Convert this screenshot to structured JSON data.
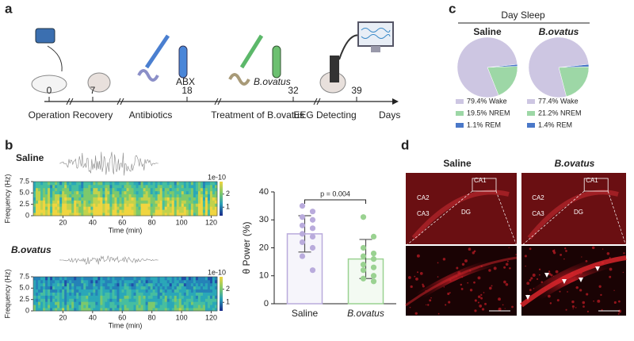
{
  "panel_labels": [
    "a",
    "b",
    "c",
    "d"
  ],
  "timeline": {
    "days": [
      0,
      7,
      18,
      32,
      39
    ],
    "stages": [
      "Operation",
      "Recovery",
      "Antibiotics",
      "Treatment of B.ovatus",
      "EEG Detecting"
    ],
    "axis_label": "Days",
    "treatments": [
      "ABX",
      "B.ovatus"
    ]
  },
  "panel_c": {
    "title": "Day Sleep"
  },
  "panel_d": {
    "titles": [
      "Saline",
      "B.ovatus"
    ],
    "regions": [
      "CA1",
      "CA2",
      "CA3",
      "DG"
    ]
  },
  "chart_data": [
    {
      "type": "spectrogram",
      "title": "Saline",
      "xlabel": "Time (min)",
      "ylabel": "Frequency (Hz)",
      "xlim": [
        0,
        124
      ],
      "xticks": [
        20,
        40,
        60,
        80,
        100,
        120
      ],
      "ylim": [
        0,
        7.5
      ],
      "yticks": [
        0,
        {
          "value": 2.5,
          "label": "2.5"
        },
        {
          "value": 5,
          "label": "5.0"
        },
        {
          "value": 7.5,
          "label": "7.5"
        }
      ],
      "colorbar_label": "1e-10",
      "colorbar_lim": [
        0.35,
        2.95
      ],
      "colorbar_ticks": [
        1,
        2
      ]
    },
    {
      "type": "spectrogram",
      "title": "B.ovatus",
      "xlabel": "Time (min)",
      "ylabel": "Frequency (Hz)",
      "xlim": [
        0,
        124
      ],
      "xticks": [
        20,
        40,
        60,
        80,
        100,
        120
      ],
      "ylim": [
        0,
        7.5
      ],
      "yticks": [
        0,
        {
          "value": 2.5,
          "label": "2.5"
        },
        {
          "value": 5,
          "label": "5.0"
        },
        {
          "value": 7.5,
          "label": "7.5"
        }
      ],
      "colorbar_label": "1e-10",
      "colorbar_lim": [
        0.35,
        2.95
      ],
      "colorbar_ticks": [
        1,
        2
      ]
    },
    {
      "type": "bar",
      "ylabel": "θ Power (%)",
      "categories": [
        "Saline",
        "B.ovatus"
      ],
      "values": [
        25,
        16
      ],
      "errors": [
        6.5,
        7
      ],
      "points": [
        [
          35,
          33,
          31,
          30,
          28,
          27,
          25,
          24,
          22,
          20,
          17,
          12
        ],
        [
          31,
          24,
          20,
          18,
          17,
          16,
          14,
          13,
          12,
          10,
          9,
          8
        ]
      ],
      "colors": [
        "#b9abdc",
        "#9ad291"
      ],
      "ylim": [
        0,
        40
      ],
      "yticks": [
        0,
        10,
        20,
        30,
        40
      ],
      "annotation": "p = 0.004"
    },
    {
      "type": "pie",
      "title": "Saline",
      "values": [
        79.4,
        19.5,
        1.1
      ],
      "value_labels": [
        "79.4% Wake",
        "19.5% NREM",
        "1.1% REM"
      ],
      "colors": [
        "#cdc6e2",
        "#9dd7a6",
        "#4a78c8"
      ]
    },
    {
      "type": "pie",
      "title": "B.ovatus",
      "values": [
        77.4,
        21.2,
        1.4
      ],
      "value_labels": [
        "77.4% Wake",
        "21.2% NREM",
        "1.4% REM"
      ],
      "colors": [
        "#cdc6e2",
        "#9dd7a6",
        "#4a78c8"
      ]
    }
  ]
}
